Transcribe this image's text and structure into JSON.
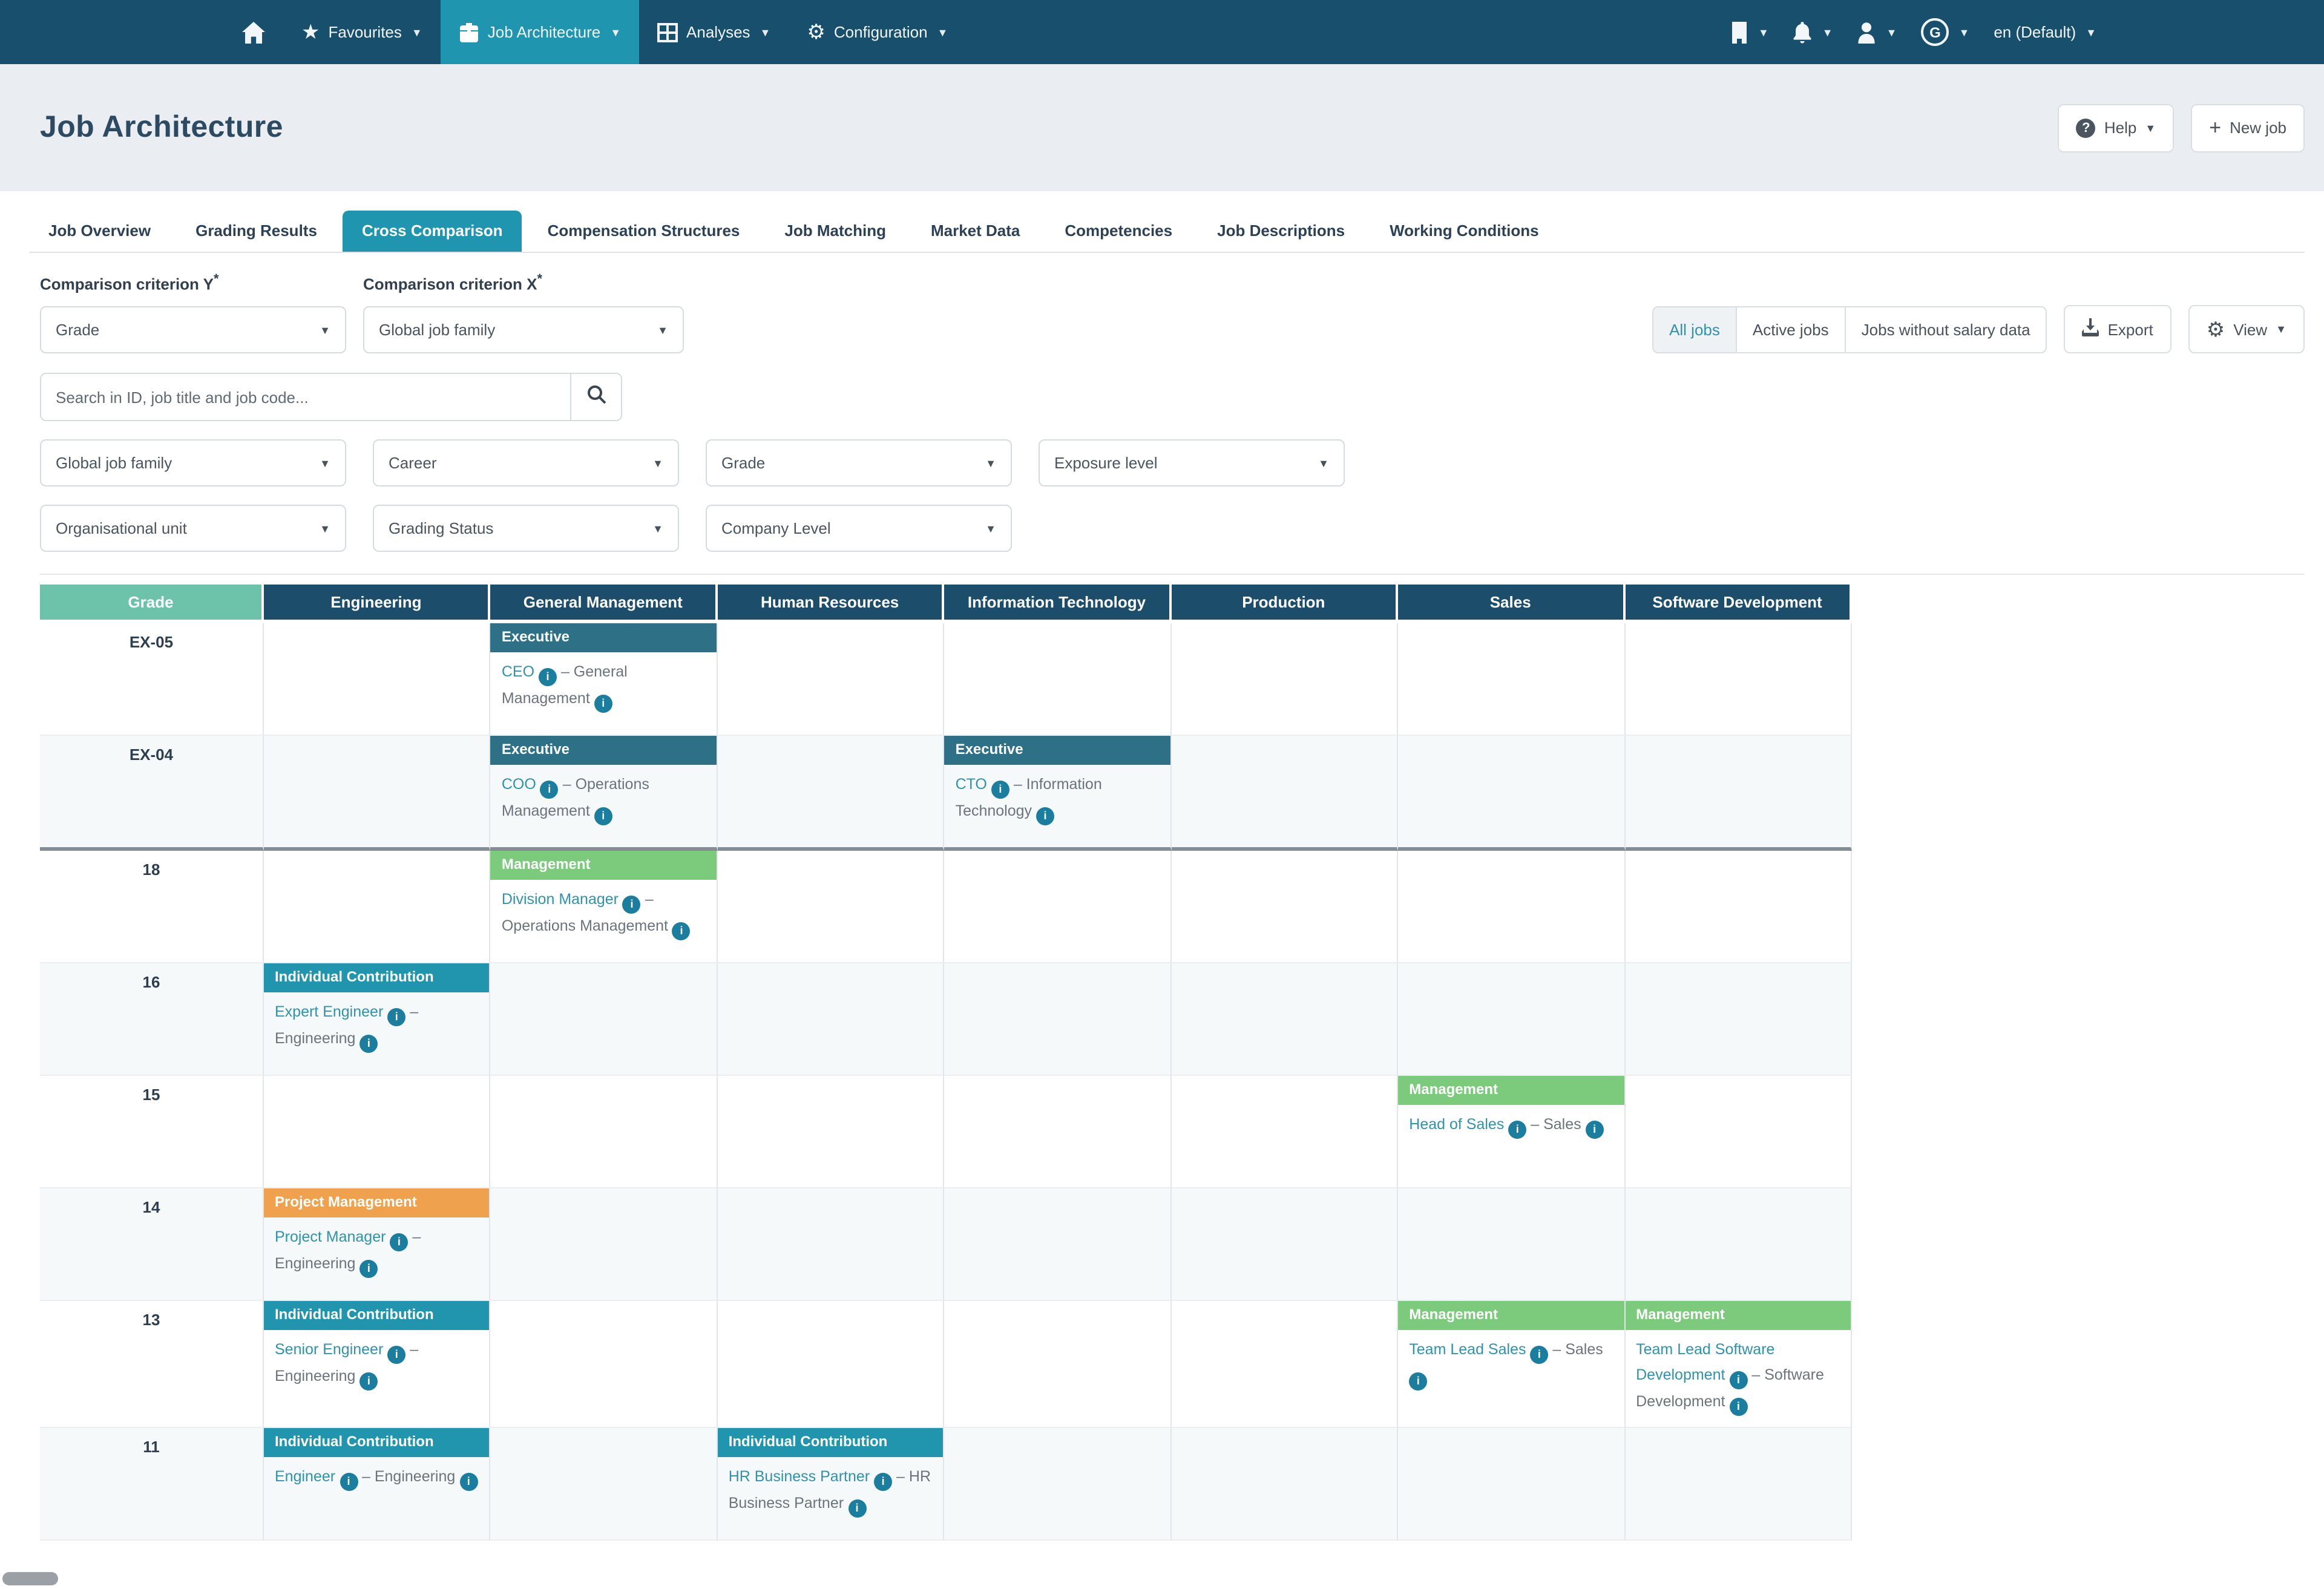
{
  "nav": {
    "items": [
      {
        "name": "home",
        "label": ""
      },
      {
        "name": "favourites",
        "label": "Favourites"
      },
      {
        "name": "job-architecture",
        "label": "Job Architecture",
        "active": true
      },
      {
        "name": "analyses",
        "label": "Analyses"
      },
      {
        "name": "configuration",
        "label": "Configuration"
      }
    ],
    "language": "en (Default)"
  },
  "header": {
    "title": "Job Architecture",
    "help_label": "Help",
    "new_job_label": "New job"
  },
  "tabs": {
    "items": [
      "Job Overview",
      "Grading Results",
      "Cross Comparison",
      "Compensation Structures",
      "Job Matching",
      "Market Data",
      "Competencies",
      "Job Descriptions",
      "Working Conditions"
    ],
    "active_index": 2
  },
  "controls": {
    "criterion_y": {
      "label": "Comparison criterion Y",
      "required_mark": "*",
      "value": "Grade"
    },
    "criterion_x": {
      "label": "Comparison criterion X",
      "required_mark": "*",
      "value": "Global job family"
    },
    "segmented": {
      "options": [
        "All jobs",
        "Active jobs",
        "Jobs without salary data"
      ],
      "active": "All jobs"
    },
    "export_label": "Export",
    "view_label": "View",
    "search_placeholder": "Search in ID, job title and job code...",
    "filters_row1": [
      "Global job family",
      "Career",
      "Grade",
      "Exposure level"
    ],
    "filters_row2": [
      "Organisational unit",
      "Grading Status",
      "Company Level"
    ]
  },
  "colors": {
    "accent_teal": "#2095b0",
    "nav_bg": "#174f6d",
    "header_col_bg": "#1c4d6b",
    "grade_col_bg": "#6cc3a9"
  },
  "table": {
    "columns": [
      "Grade",
      "Engineering",
      "General Management",
      "Human Resources",
      "Information Technology",
      "Production",
      "Sales",
      "Software Development"
    ],
    "career_colors": {
      "Executive": "#2e7186",
      "Management": "#7cca7c",
      "Individual Contribution": "#2194ae",
      "Project Management": "#f0a14e"
    },
    "rows": [
      {
        "grade": "EX-05",
        "cells": {
          "General Management": {
            "career": "Executive",
            "job": "CEO",
            "family": "General Management"
          }
        }
      },
      {
        "grade": "EX-04",
        "section_end": true,
        "cells": {
          "General Management": {
            "career": "Executive",
            "job": "COO",
            "family": "Operations Management"
          },
          "Information Technology": {
            "career": "Executive",
            "job": "CTO",
            "family": "Information Technology"
          }
        }
      },
      {
        "grade": "18",
        "cells": {
          "General Management": {
            "career": "Management",
            "job": "Division Manager",
            "family": "Operations Management"
          }
        }
      },
      {
        "grade": "16",
        "cells": {
          "Engineering": {
            "career": "Individual Contribution",
            "job": "Expert Engineer",
            "family": "Engineering"
          }
        }
      },
      {
        "grade": "15",
        "cells": {
          "Sales": {
            "career": "Management",
            "job": "Head of Sales",
            "family": "Sales"
          }
        }
      },
      {
        "grade": "14",
        "cells": {
          "Engineering": {
            "career": "Project Management",
            "job": "Project Manager",
            "family": "Engineering"
          }
        }
      },
      {
        "grade": "13",
        "cells": {
          "Engineering": {
            "career": "Individual Contribution",
            "job": "Senior Engineer",
            "family": "Engineering"
          },
          "Sales": {
            "career": "Management",
            "job": "Team Lead Sales",
            "family": "Sales"
          },
          "Software Development": {
            "career": "Management",
            "job": "Team Lead Software Development",
            "family": "Software Development"
          }
        }
      },
      {
        "grade": "11",
        "cells": {
          "Engineering": {
            "career": "Individual Contribution",
            "job": "Engineer",
            "family": "Engineering"
          },
          "Human Resources": {
            "career": "Individual Contribution",
            "job": "HR Business Partner",
            "family": "HR Business Partner"
          }
        }
      }
    ]
  }
}
